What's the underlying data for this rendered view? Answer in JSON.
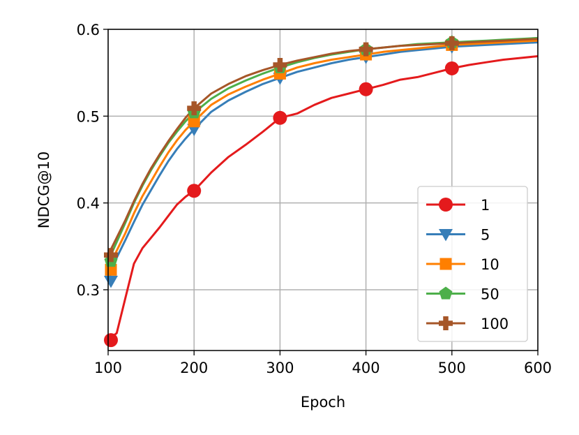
{
  "chart_data": {
    "type": "line",
    "title": "",
    "xlabel": "Epoch",
    "ylabel": "NDCG@10",
    "xlim": [
      100,
      600
    ],
    "ylim": [
      0.23,
      0.6
    ],
    "xticks": [
      "100",
      "200",
      "300",
      "400",
      "500",
      "600"
    ],
    "yticks": [
      "0.3",
      "0.4",
      "0.5",
      "0.6"
    ],
    "grid": true,
    "legend_position": "lower-right",
    "series": [
      {
        "name": "1",
        "color": "#e41a1c",
        "marker": "circle",
        "x": [
          100,
          110,
          120,
          130,
          140,
          150,
          160,
          170,
          180,
          190,
          200,
          220,
          240,
          260,
          280,
          300,
          320,
          340,
          360,
          380,
          400,
          420,
          440,
          460,
          480,
          500,
          520,
          540,
          560,
          580,
          600
        ],
        "y": [
          0.242,
          0.25,
          0.29,
          0.33,
          0.348,
          0.36,
          0.372,
          0.385,
          0.398,
          0.407,
          0.414,
          0.435,
          0.453,
          0.467,
          0.482,
          0.498,
          0.503,
          0.513,
          0.521,
          0.526,
          0.531,
          0.536,
          0.542,
          0.545,
          0.55,
          0.555,
          0.559,
          0.562,
          0.565,
          0.567,
          0.569
        ]
      },
      {
        "name": "5",
        "color": "#377eb8",
        "marker": "triangle-down",
        "x": [
          100,
          110,
          120,
          130,
          140,
          150,
          160,
          170,
          180,
          190,
          200,
          220,
          240,
          260,
          280,
          300,
          320,
          340,
          360,
          380,
          400,
          420,
          440,
          460,
          480,
          500,
          520,
          540,
          560,
          580,
          600
        ],
        "y": [
          0.31,
          0.337,
          0.357,
          0.378,
          0.398,
          0.415,
          0.432,
          0.448,
          0.462,
          0.474,
          0.485,
          0.505,
          0.518,
          0.528,
          0.537,
          0.544,
          0.551,
          0.556,
          0.561,
          0.565,
          0.568,
          0.571,
          0.574,
          0.576,
          0.578,
          0.58,
          0.581,
          0.582,
          0.583,
          0.584,
          0.585
        ]
      },
      {
        "name": "10",
        "color": "#ff7f00",
        "marker": "square",
        "x": [
          100,
          110,
          120,
          130,
          140,
          150,
          160,
          170,
          180,
          190,
          200,
          220,
          240,
          260,
          280,
          300,
          320,
          340,
          360,
          380,
          400,
          420,
          440,
          460,
          480,
          500,
          520,
          540,
          560,
          580,
          600
        ],
        "y": [
          0.323,
          0.345,
          0.365,
          0.388,
          0.408,
          0.425,
          0.442,
          0.458,
          0.472,
          0.484,
          0.494,
          0.513,
          0.525,
          0.534,
          0.542,
          0.549,
          0.556,
          0.561,
          0.565,
          0.568,
          0.571,
          0.574,
          0.576,
          0.578,
          0.58,
          0.582,
          0.583,
          0.584,
          0.585,
          0.586,
          0.587
        ]
      },
      {
        "name": "50",
        "color": "#4daf4a",
        "marker": "pentagon",
        "x": [
          100,
          110,
          120,
          130,
          140,
          150,
          160,
          170,
          180,
          190,
          200,
          220,
          240,
          260,
          280,
          300,
          320,
          340,
          360,
          380,
          400,
          420,
          440,
          460,
          480,
          500,
          520,
          540,
          560,
          580,
          600
        ],
        "y": [
          0.333,
          0.355,
          0.377,
          0.4,
          0.42,
          0.438,
          0.454,
          0.469,
          0.482,
          0.494,
          0.504,
          0.52,
          0.532,
          0.541,
          0.549,
          0.556,
          0.562,
          0.567,
          0.571,
          0.574,
          0.577,
          0.579,
          0.581,
          0.583,
          0.584,
          0.585,
          0.586,
          0.587,
          0.588,
          0.589,
          0.59
        ]
      },
      {
        "name": "100",
        "color": "#a65628",
        "marker": "plus",
        "x": [
          100,
          110,
          120,
          130,
          140,
          150,
          160,
          170,
          180,
          190,
          200,
          220,
          240,
          260,
          280,
          300,
          320,
          340,
          360,
          380,
          400,
          420,
          440,
          460,
          480,
          500,
          520,
          540,
          560,
          580,
          600
        ],
        "y": [
          0.34,
          0.36,
          0.38,
          0.402,
          0.422,
          0.44,
          0.456,
          0.471,
          0.485,
          0.498,
          0.509,
          0.526,
          0.537,
          0.546,
          0.553,
          0.559,
          0.564,
          0.568,
          0.572,
          0.575,
          0.577,
          0.579,
          0.581,
          0.582,
          0.583,
          0.584,
          0.585,
          0.586,
          0.587,
          0.588,
          0.589
        ]
      }
    ]
  }
}
